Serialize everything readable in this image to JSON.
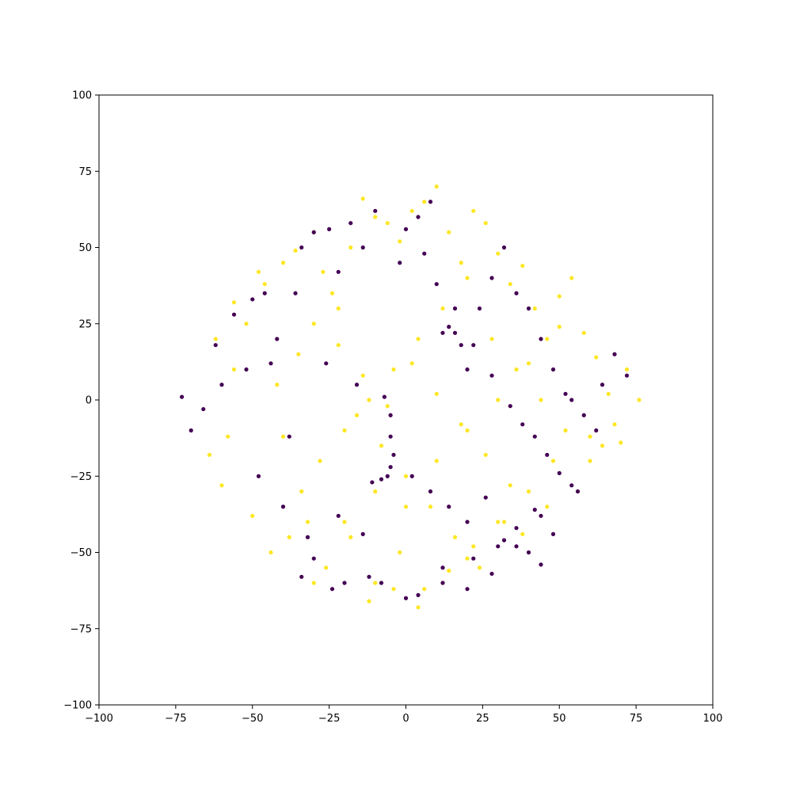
{
  "chart_data": {
    "type": "scatter",
    "title": "",
    "xlabel": "",
    "ylabel": "",
    "xlim": [
      -100,
      100
    ],
    "ylim": [
      -100,
      100
    ],
    "x_ticks": [
      -100,
      -75,
      -50,
      -25,
      0,
      25,
      50,
      75,
      100
    ],
    "y_ticks": [
      -100,
      -75,
      -50,
      -25,
      0,
      25,
      50,
      75,
      100
    ],
    "x_tick_labels": [
      "−100",
      "−75",
      "−50",
      "−25",
      "0",
      "25",
      "50",
      "75",
      "100"
    ],
    "y_tick_labels": [
      "−100",
      "−75",
      "−50",
      "−25",
      "0",
      "25",
      "50",
      "75",
      "100"
    ],
    "grid": false,
    "legend": "none",
    "series": [
      {
        "color": "#fde725",
        "x": [
          -60.0,
          -58.0,
          -56.0,
          -52.0,
          -46.0,
          -40.0,
          -36.0,
          -30.0,
          -27.0,
          -22.0,
          -18.0,
          -14.0,
          -10.0,
          -6.0,
          -2.0,
          2.0,
          6.0,
          10.0,
          14.0,
          18.0,
          22.0,
          26.0,
          30.0,
          34.0,
          38.0,
          42.0,
          46.0,
          50.0,
          54.0,
          58.0,
          62.0,
          66.0,
          70.0,
          -50.0,
          -44.0,
          -38.0,
          -34.0,
          -28.0,
          -20.0,
          -12.0,
          -4.0,
          4.0,
          12.0,
          20.0,
          28.0,
          36.0,
          44.0,
          52.0,
          60.0,
          -42.0,
          -35.0,
          -30.0,
          -24.0,
          -16.0,
          -8.0,
          0.0,
          8.0,
          16.0,
          24.0,
          32.0,
          40.0,
          48.0,
          56.0,
          64.0,
          -32.0,
          -26.0,
          -18.0,
          -10.0,
          -2.0,
          6.0,
          14.0,
          22.0,
          30.0,
          38.0,
          46.0,
          -22.0,
          -14.0,
          -6.0,
          2.0,
          10.0,
          18.0,
          26.0,
          34.0,
          -12.0,
          -4.0,
          4.0,
          12.0,
          20.0,
          -64.0,
          -62.0,
          -56.0,
          -48.0,
          -40.0,
          -30.0,
          -20.0,
          -10.0,
          0.0,
          10.0,
          20.0,
          30.0,
          40.0,
          50.0,
          60.0,
          68.0,
          72.0,
          76.0
        ],
        "y": [
          -28.0,
          -12.0,
          10.0,
          25.0,
          38.0,
          45.0,
          49.0,
          55.0,
          42.0,
          30.0,
          50.0,
          66.0,
          60.0,
          58.0,
          52.0,
          62.0,
          65.0,
          70.0,
          55.0,
          45.0,
          62.0,
          58.0,
          48.0,
          38.0,
          44.0,
          30.0,
          20.0,
          34.0,
          40.0,
          22.0,
          14.0,
          2.0,
          -14.0,
          -38.0,
          -50.0,
          -45.0,
          -30.0,
          -20.0,
          -10.0,
          0.0,
          10.0,
          20.0,
          30.0,
          40.0,
          20.0,
          10.0,
          0.0,
          -10.0,
          -20.0,
          5.0,
          15.0,
          25.0,
          35.0,
          -5.0,
          -15.0,
          -25.0,
          -35.0,
          -45.0,
          -55.0,
          -40.0,
          -30.0,
          -20.0,
          -30.0,
          -15.0,
          -40.0,
          -55.0,
          -45.0,
          -60.0,
          -50.0,
          -62.0,
          -56.0,
          -48.0,
          -40.0,
          -44.0,
          -35.0,
          18.0,
          8.0,
          -2.0,
          12.0,
          2.0,
          -8.0,
          -18.0,
          -28.0,
          -66.0,
          -62.0,
          -68.0,
          -60.0,
          -52.0,
          -18.0,
          20.0,
          32.0,
          42.0,
          -12.0,
          -60.0,
          -40.0,
          -30.0,
          -35.0,
          -20.0,
          -10.0,
          0.0,
          12.0,
          24.0,
          -12.0,
          -8.0,
          10.0,
          0.0
        ]
      },
      {
        "color": "#440154",
        "x": [
          -73.0,
          -70.0,
          -66.0,
          -62.0,
          -56.0,
          -50.0,
          -46.0,
          -44.0,
          -38.0,
          -34.0,
          -30.0,
          -25.0,
          -22.0,
          -18.0,
          -14.0,
          -10.0,
          -7.0,
          -5.0,
          -5.0,
          -4.0,
          -5.0,
          -6.0,
          -8.0,
          -11.0,
          0.0,
          4.0,
          8.0,
          12.0,
          14.0,
          16.0,
          18.0,
          20.0,
          24.0,
          28.0,
          32.0,
          36.0,
          40.0,
          44.0,
          48.0,
          52.0,
          54.0,
          58.0,
          62.0,
          64.0,
          68.0,
          72.0,
          -60.0,
          -52.0,
          -42.0,
          -36.0,
          -26.0,
          -16.0,
          -2.0,
          6.0,
          10.0,
          16.0,
          22.0,
          28.0,
          34.0,
          38.0,
          42.0,
          46.0,
          50.0,
          56.0,
          -48.0,
          -40.0,
          -32.0,
          -22.0,
          -14.0,
          2.0,
          8.0,
          14.0,
          20.0,
          26.0,
          30.0,
          36.0,
          40.0,
          44.0,
          48.0,
          -30.0,
          -20.0,
          -12.0,
          4.0,
          12.0,
          20.0,
          28.0,
          36.0,
          44.0,
          -34.0,
          -24.0,
          -8.0,
          0.0,
          12.0,
          22.0,
          32.0,
          42.0,
          54.0
        ],
        "y": [
          1.0,
          -10.0,
          -3.0,
          18.0,
          28.0,
          33.0,
          35.0,
          12.0,
          -12.0,
          50.0,
          55.0,
          56.0,
          42.0,
          58.0,
          50.0,
          62.0,
          1.0,
          -5.0,
          -12.0,
          -18.0,
          -22.0,
          -25.0,
          -26.0,
          -27.0,
          56.0,
          60.0,
          65.0,
          22.0,
          24.0,
          22.0,
          18.0,
          10.0,
          30.0,
          40.0,
          50.0,
          35.0,
          30.0,
          20.0,
          10.0,
          2.0,
          0.0,
          -5.0,
          -10.0,
          5.0,
          15.0,
          8.0,
          5.0,
          10.0,
          20.0,
          35.0,
          12.0,
          5.0,
          45.0,
          48.0,
          38.0,
          30.0,
          18.0,
          8.0,
          -2.0,
          -8.0,
          -12.0,
          -18.0,
          -24.0,
          -30.0,
          -25.0,
          -35.0,
          -45.0,
          -38.0,
          -44.0,
          -25.0,
          -30.0,
          -35.0,
          -40.0,
          -32.0,
          -48.0,
          -42.0,
          -50.0,
          -38.0,
          -44.0,
          -52.0,
          -60.0,
          -58.0,
          -64.0,
          -55.0,
          -62.0,
          -57.0,
          -48.0,
          -54.0,
          -58.0,
          -62.0,
          -60.0,
          -65.0,
          -60.0,
          -52.0,
          -46.0,
          -36.0,
          -28.0
        ]
      }
    ]
  }
}
